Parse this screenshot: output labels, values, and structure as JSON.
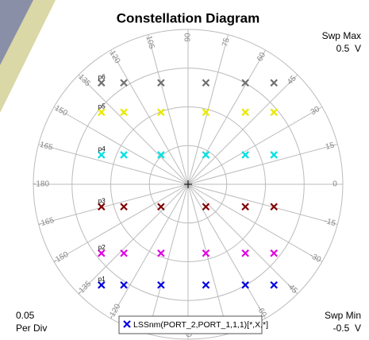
{
  "chart_data": {
    "type": "polar-scatter",
    "title": "Constellation Diagram",
    "swp_max": {
      "label": "Swp Max",
      "value": "0.5  V"
    },
    "swp_min": {
      "label": "Swp Min",
      "value": "-0.5  V"
    },
    "scale": {
      "value": "0.05",
      "label": "Per Div"
    },
    "rlim": [
      0,
      0.2
    ],
    "rticks": [
      0.05,
      0.1,
      0.15,
      0.2
    ],
    "angle_ticks": [
      0,
      15,
      30,
      45,
      60,
      75,
      90,
      105,
      120,
      135,
      150,
      165,
      -180,
      -165,
      -150,
      -135,
      -120,
      -105,
      -90,
      -75,
      -60,
      -45,
      -30,
      -15
    ],
    "legend": "LSSnm(PORT_2,PORT_1,1,1)[*,X,*]",
    "legend_color": "#0000e0",
    "series": [
      {
        "name": "p6",
        "color": "#707070",
        "x": [
          -0.112,
          -0.083,
          -0.035,
          0.023,
          0.074,
          0.111
        ],
        "y": [
          0.131,
          0.131,
          0.131,
          0.131,
          0.131,
          0.131
        ]
      },
      {
        "name": "p5",
        "color": "#e8e800",
        "x": [
          -0.112,
          -0.083,
          -0.035,
          0.023,
          0.074,
          0.111
        ],
        "y": [
          0.093,
          0.093,
          0.093,
          0.093,
          0.093,
          0.093
        ]
      },
      {
        "name": "p4",
        "color": "#00e0e0",
        "x": [
          -0.112,
          -0.083,
          -0.035,
          0.023,
          0.074,
          0.111
        ],
        "y": [
          0.038,
          0.038,
          0.038,
          0.038,
          0.038,
          0.038
        ]
      },
      {
        "name": "p3",
        "color": "#800000",
        "x": [
          -0.112,
          -0.083,
          -0.035,
          0.023,
          0.074,
          0.111
        ],
        "y": [
          -0.029,
          -0.029,
          -0.029,
          -0.029,
          -0.029,
          -0.029
        ]
      },
      {
        "name": "p2",
        "color": "#e000e0",
        "x": [
          -0.112,
          -0.083,
          -0.035,
          0.023,
          0.074,
          0.111
        ],
        "y": [
          -0.089,
          -0.089,
          -0.089,
          -0.089,
          -0.089,
          -0.089
        ]
      },
      {
        "name": "p1",
        "color": "#0000e0",
        "x": [
          -0.112,
          -0.083,
          -0.035,
          0.023,
          0.074,
          0.111
        ],
        "y": [
          -0.13,
          -0.13,
          -0.13,
          -0.13,
          -0.13,
          -0.13
        ]
      }
    ]
  }
}
